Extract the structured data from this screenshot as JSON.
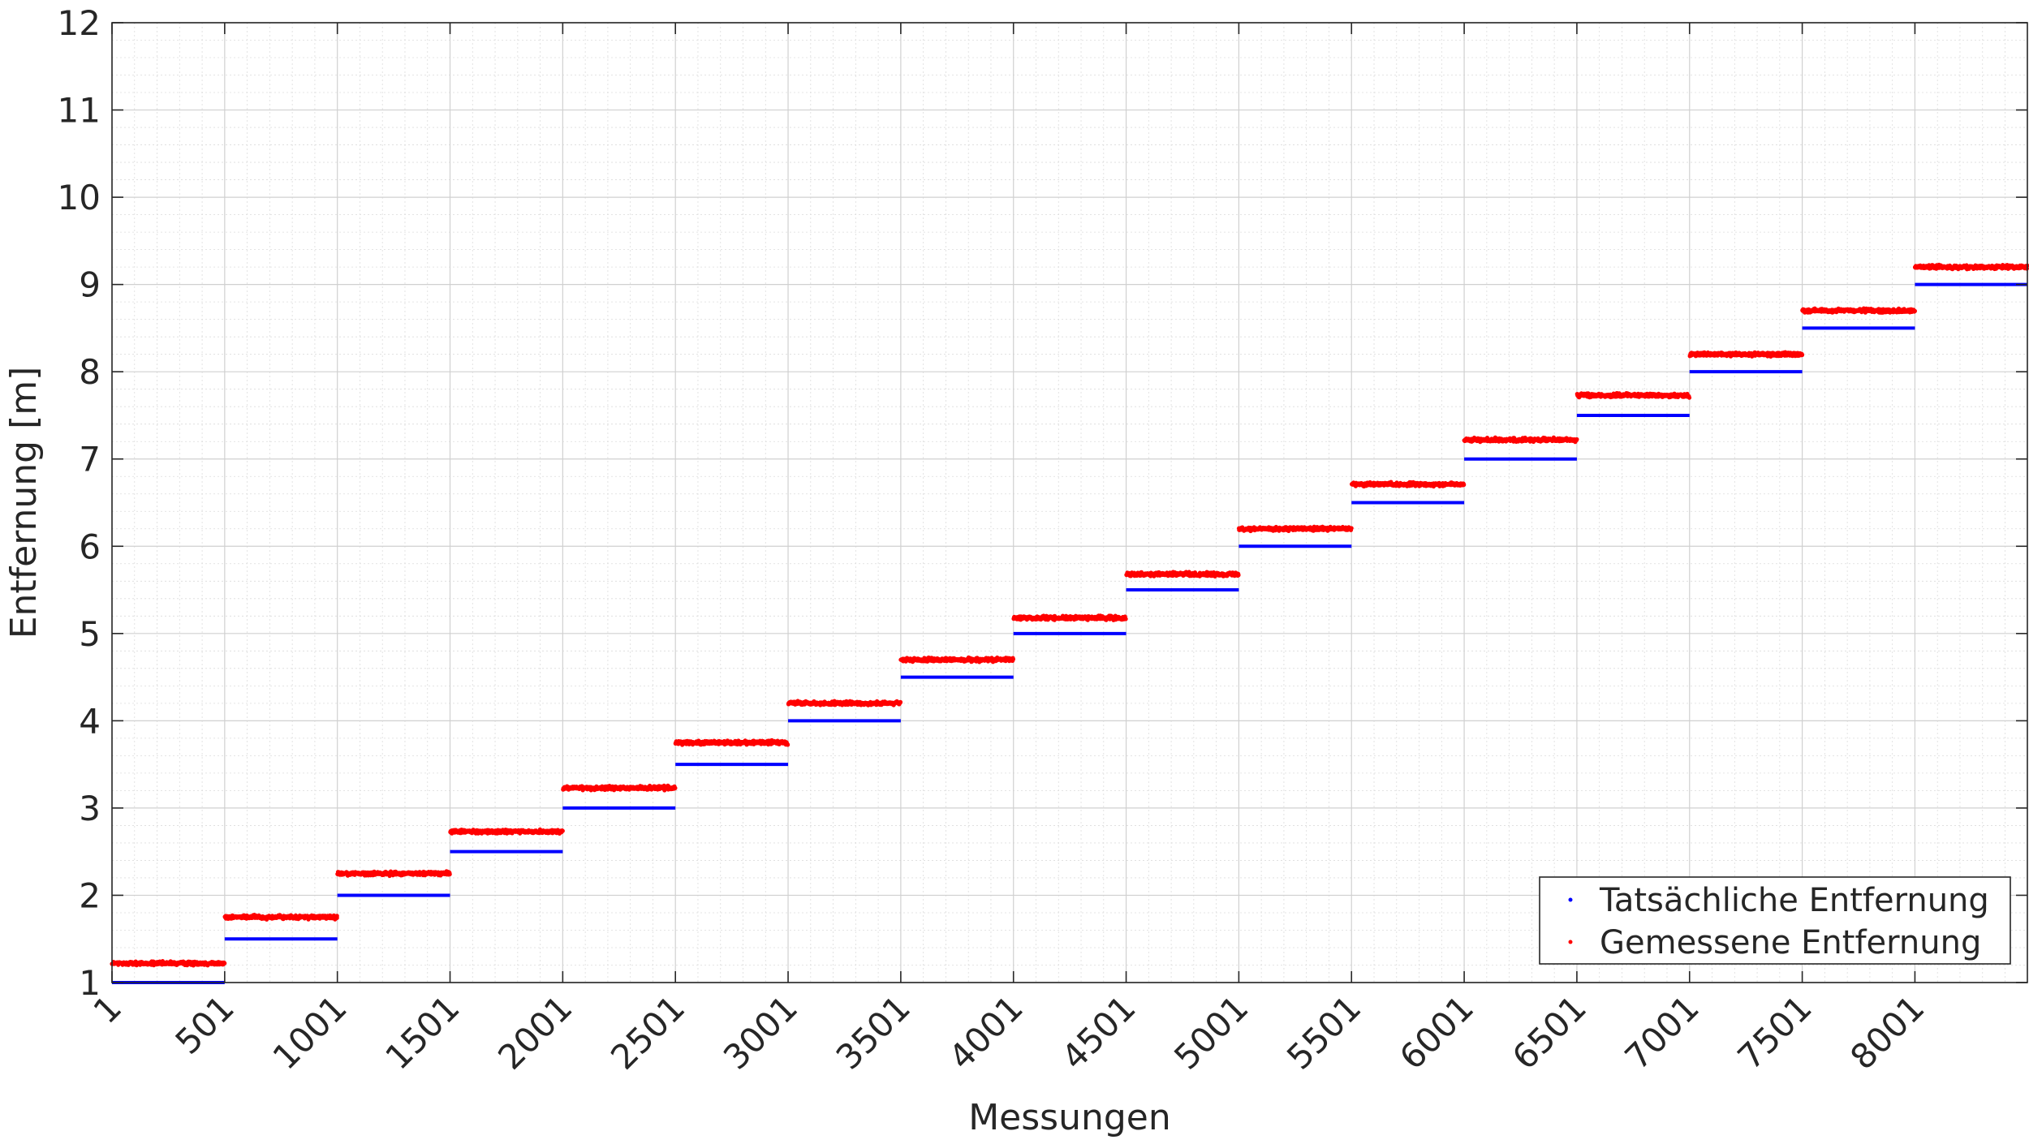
{
  "chart_data": {
    "type": "scatter",
    "title": "",
    "xlabel": "Messungen",
    "ylabel": "Entfernung [m]",
    "xlim": [
      1,
      8500
    ],
    "ylim": [
      1,
      12
    ],
    "x_ticks": [
      1,
      501,
      1001,
      1501,
      2001,
      2501,
      3001,
      3501,
      4001,
      4501,
      5001,
      5501,
      6001,
      6501,
      7001,
      7501,
      8001
    ],
    "x_tick_labels": [
      "1",
      "501",
      "1001",
      "1501",
      "2001",
      "2501",
      "3001",
      "3501",
      "4001",
      "4501",
      "5001",
      "5501",
      "6001",
      "6501",
      "7001",
      "7501",
      "8001"
    ],
    "y_ticks": [
      1,
      2,
      3,
      4,
      5,
      6,
      7,
      8,
      9,
      10,
      11,
      12
    ],
    "y_tick_labels": [
      "1",
      "2",
      "3",
      "4",
      "5",
      "6",
      "7",
      "8",
      "9",
      "10",
      "11",
      "12"
    ],
    "grid": true,
    "minor_grid": true,
    "legend_position": "bottom-right",
    "segment_length": 500,
    "series": [
      {
        "name": "Tatsächliche Entfernung",
        "color": "#0000ff",
        "marker": "dot",
        "values": [
          1.0,
          1.5,
          2.0,
          2.5,
          3.0,
          3.5,
          4.0,
          4.5,
          5.0,
          5.5,
          6.0,
          6.5,
          7.0,
          7.5,
          8.0,
          8.5,
          9.0
        ]
      },
      {
        "name": "Gemessene Entfernung",
        "color": "#ff0000",
        "marker": "dot",
        "values": [
          1.22,
          1.75,
          2.25,
          2.73,
          3.23,
          3.75,
          4.2,
          4.7,
          5.18,
          5.68,
          6.2,
          6.71,
          7.22,
          7.73,
          8.2,
          8.7,
          9.2
        ],
        "noise": 0.02
      }
    ]
  }
}
